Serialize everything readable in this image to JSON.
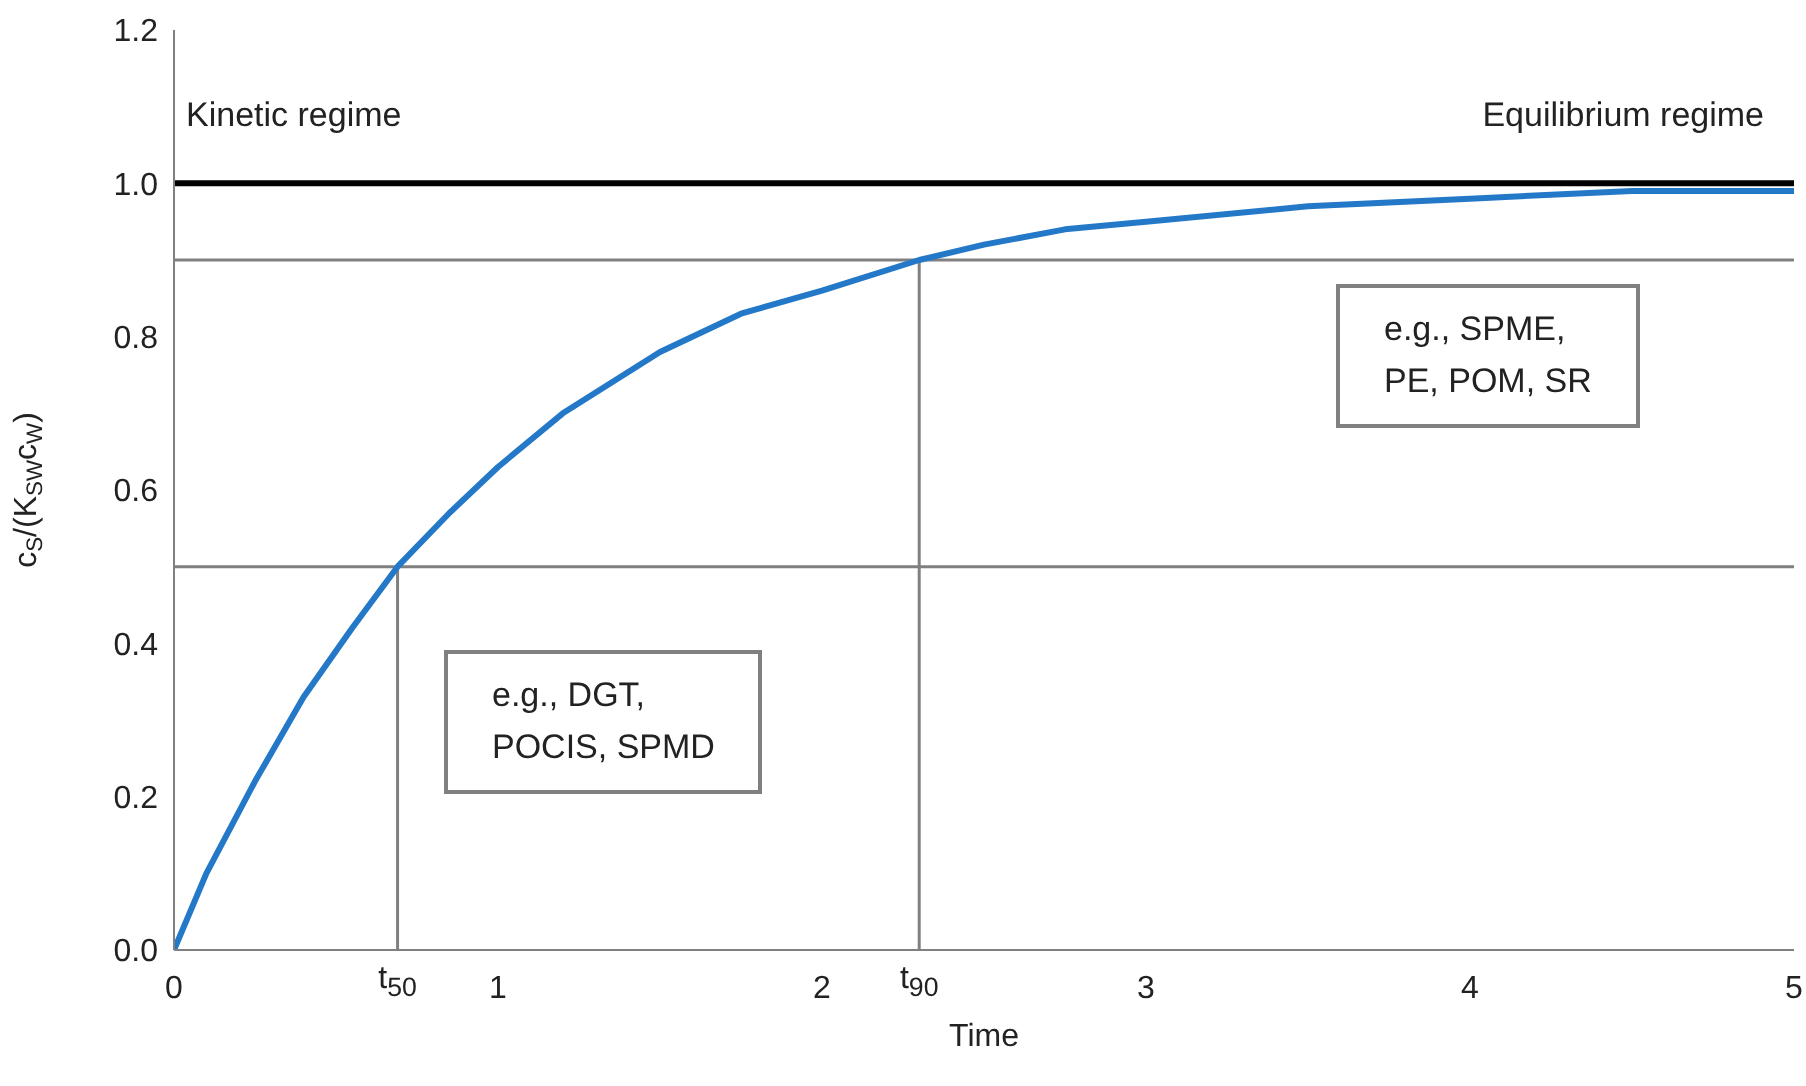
{
  "chart_data": {
    "type": "line",
    "xlabel": "Time",
    "ylabel": "c$_{S}$/(K$_{SW}$c$_{W}$)",
    "x": [
      0,
      0.1,
      0.25,
      0.4,
      0.55,
      0.69,
      0.85,
      1,
      1.2,
      1.5,
      1.75,
      2,
      2.3,
      2.5,
      2.75,
      3,
      3.5,
      4,
      4.5,
      5
    ],
    "series": [
      {
        "color": "#2478c8",
        "values": [
          0,
          0.1,
          0.22,
          0.33,
          0.42,
          0.5,
          0.57,
          0.63,
          0.7,
          0.78,
          0.83,
          0.86,
          0.9,
          0.92,
          0.94,
          0.95,
          0.97,
          0.98,
          0.99,
          0.99
        ]
      }
    ],
    "xlim": [
      0,
      5
    ],
    "ylim": [
      0,
      1.2
    ],
    "xticks": [
      0,
      1,
      2,
      3,
      4,
      5
    ],
    "yticks": [
      {
        "value": 0,
        "label": "0.0"
      },
      {
        "value": 0.2,
        "label": "0.2"
      },
      {
        "value": 0.4,
        "label": "0.4"
      },
      {
        "value": 0.6,
        "label": "0.6"
      },
      {
        "value": 0.8,
        "label": "0.8"
      },
      {
        "value": 1,
        "label": "1.0"
      },
      {
        "value": 1.2,
        "label": "1.2"
      }
    ],
    "ref_lines": [
      {
        "axis": "y",
        "value": 1,
        "color": "#000000"
      },
      {
        "axis": "y",
        "value": 0.9,
        "color": "#808080"
      },
      {
        "axis": "y",
        "value": 0.5,
        "color": "#808080"
      },
      {
        "axis": "x",
        "value": 0.69,
        "color": "#808080"
      },
      {
        "axis": "x",
        "value": 2.3,
        "color": "#808080"
      }
    ],
    "annotations": [
      "Kinetic regime",
      "Equilibrium regime",
      "e.g., SPME,\nPE, POM, SR",
      "e.g., DGT,\nPOCIS, SPMD",
      {
        "text": "t$_{50}$",
        "x": 0.69,
        "y": 0
      },
      {
        "text": "t$_{90}$",
        "x": 2.3,
        "y": 0
      }
    ],
    "grid": false,
    "marker": "none",
    "line_style": "solid"
  }
}
